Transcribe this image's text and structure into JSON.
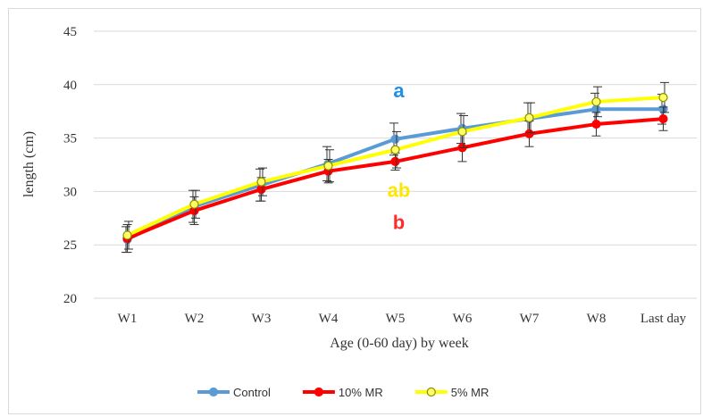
{
  "chart_data": {
    "type": "line",
    "title": "",
    "xlabel": "Age (0-60  day) by week",
    "ylabel": "length (cm)",
    "ylim": [
      20,
      45
    ],
    "yticks": [
      20,
      25,
      30,
      35,
      40,
      45
    ],
    "grid": "horizontal",
    "legend_position": "bottom",
    "categories": [
      "W1",
      "W2",
      "W3",
      "W4",
      "W5",
      "W6",
      "W7",
      "W8",
      "Last day"
    ],
    "series": [
      {
        "name": "Control",
        "color": "#5b9bd5",
        "marker_fill": "#5b9bd5",
        "values": [
          25.5,
          28.6,
          30.6,
          32.6,
          34.9,
          35.9,
          36.8,
          37.7,
          37.7
        ],
        "errors": [
          1.2,
          1.5,
          1.5,
          1.6,
          1.5,
          1.4,
          1.5,
          1.5,
          1.4
        ]
      },
      {
        "name": "10% MR",
        "color": "#ff0000",
        "marker_fill": "#ff0000",
        "values": [
          25.6,
          28.2,
          30.2,
          31.9,
          32.8,
          34.1,
          35.4,
          36.3,
          36.8
        ],
        "errors": [
          1.3,
          1.3,
          1.1,
          1.1,
          0.8,
          1.3,
          1.2,
          1.1,
          1.1
        ]
      },
      {
        "name": "5% MR",
        "color": "#ffff00",
        "marker_fill": "#ffff66",
        "marker_stroke": "#8c8c00",
        "values": [
          25.9,
          28.8,
          30.9,
          32.4,
          33.9,
          35.6,
          36.9,
          38.4,
          38.8
        ],
        "errors": [
          1.3,
          1.3,
          1.3,
          1.5,
          1.7,
          1.5,
          1.4,
          1.4,
          1.4
        ]
      }
    ],
    "annotations": [
      {
        "text": "a",
        "x": "W5",
        "y": 38.8,
        "color": "#1e90e6"
      },
      {
        "text": "ab",
        "x": "W5",
        "y": 29.5,
        "color": "#ffe600"
      },
      {
        "text": "b",
        "x": "W5",
        "y": 26.5,
        "color": "#ff2a2a"
      }
    ]
  }
}
